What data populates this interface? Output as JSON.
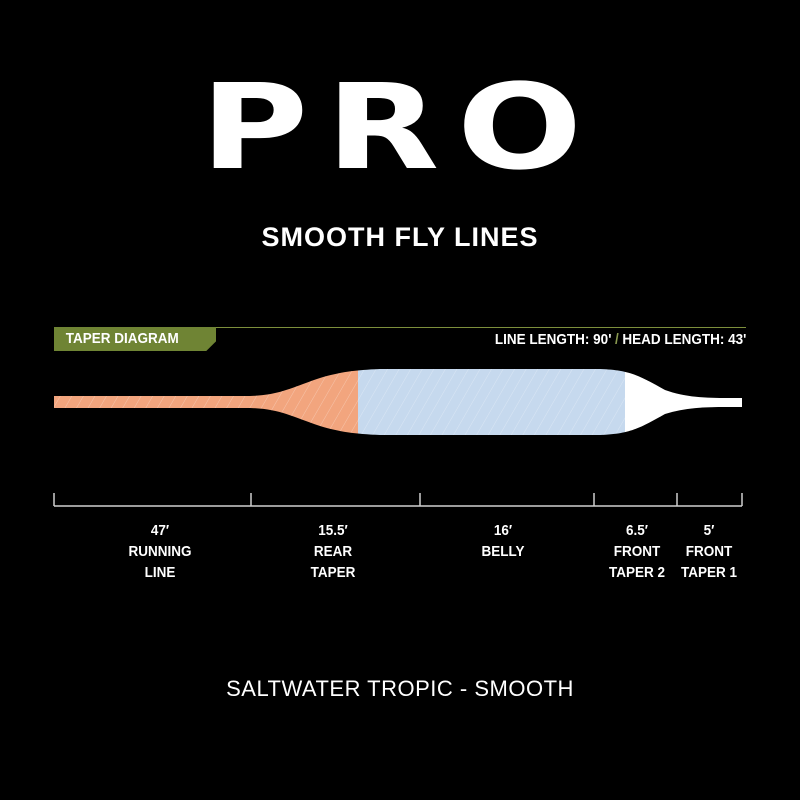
{
  "header": {
    "brand": "PRO",
    "subtitle": "SMOOTH FLY LINES"
  },
  "diagram": {
    "badge": "TAPER DIAGRAM",
    "line_length": "LINE LENGTH: 90'",
    "separator": "/",
    "head_length": "HEAD LENGTH: 43'",
    "colors": {
      "running_line": "#f2a57e",
      "belly": "#c6d9ee",
      "front_taper": "#ffffff",
      "badge": "#6f8434"
    },
    "segments": [
      {
        "length": "47′",
        "label1": "RUNNING",
        "label2": "LINE"
      },
      {
        "length": "15.5′",
        "label1": "REAR",
        "label2": "TAPER"
      },
      {
        "length": "16′",
        "label1": "BELLY",
        "label2": ""
      },
      {
        "length": "6.5′",
        "label1": "FRONT",
        "label2": "TAPER 2"
      },
      {
        "length": "5′",
        "label1": "FRONT",
        "label2": "TAPER 1"
      }
    ]
  },
  "footer": {
    "product": "SALTWATER TROPIC - SMOOTH"
  }
}
